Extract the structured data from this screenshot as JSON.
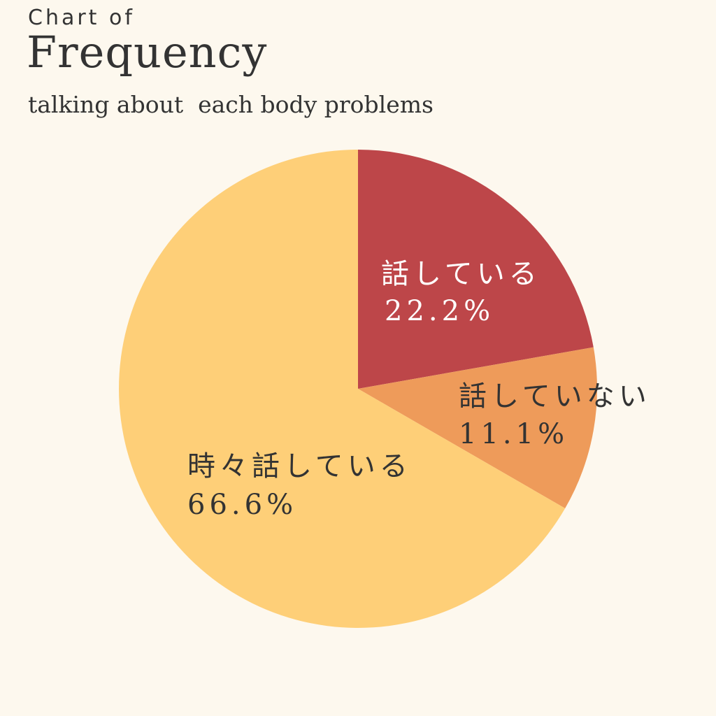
{
  "header": {
    "kicker": "Chart of",
    "title": "Frequency",
    "subtitle": "talking about  each body problems"
  },
  "chart_data": {
    "type": "pie",
    "title": "Frequency",
    "subtitle": "talking about  each body problems",
    "start": "12 o'clock",
    "direction": "clockwise",
    "slices": [
      {
        "label": "話している",
        "value": 22.2,
        "value_label": "22.2%",
        "color": "#bd4649",
        "text_color": "#ffffff"
      },
      {
        "label": "話していない",
        "value": 11.1,
        "value_label": "11.1%",
        "color": "#ee9b5a",
        "text_color": "#333333"
      },
      {
        "label": "時々話している",
        "value": 66.6,
        "value_label": "66.6%",
        "color": "#fecf78",
        "text_color": "#333333"
      }
    ]
  }
}
